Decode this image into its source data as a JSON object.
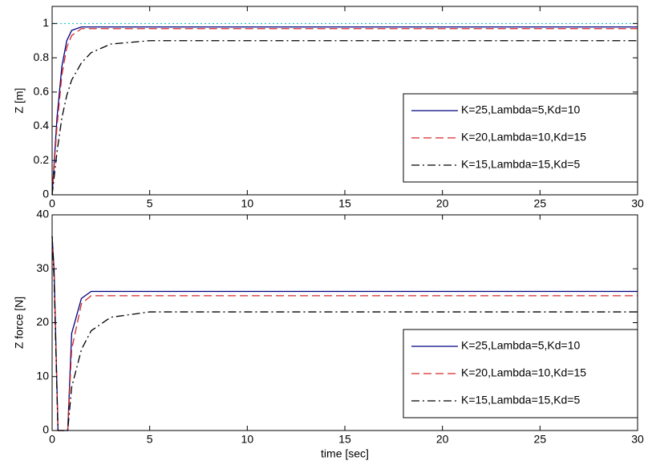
{
  "chart_data": [
    {
      "type": "line",
      "ylabel": "Z [m]",
      "x": [
        0,
        0.25,
        0.5,
        0.75,
        1,
        1.5,
        2,
        3,
        5,
        10,
        20,
        30
      ],
      "series": [
        {
          "name": "K=25,Lambda=5,Kd=10",
          "color": "#000080",
          "linestyle": "solid",
          "values": [
            0,
            0.45,
            0.75,
            0.9,
            0.96,
            0.98,
            0.98,
            0.98,
            0.98,
            0.98,
            0.98,
            0.98
          ]
        },
        {
          "name": "K=20,Lambda=10,Kd=15",
          "color": "#d62728",
          "linestyle": "dashed",
          "values": [
            0,
            0.4,
            0.7,
            0.86,
            0.93,
            0.97,
            0.97,
            0.97,
            0.97,
            0.97,
            0.97,
            0.97
          ]
        },
        {
          "name": "K=15,Lambda=15,Kd=5",
          "color": "#000000",
          "linestyle": "dashdot",
          "values": [
            0,
            0.25,
            0.45,
            0.58,
            0.67,
            0.77,
            0.83,
            0.88,
            0.9,
            0.9,
            0.9,
            0.9
          ]
        }
      ],
      "reference": {
        "value": 1,
        "color": "#00bfbf"
      },
      "xlim": [
        0,
        30
      ],
      "xticks": [
        0,
        5,
        10,
        15,
        20,
        25,
        30
      ],
      "ylim": [
        0,
        1.1
      ],
      "yticks": [
        0,
        0.2,
        0.4,
        0.6,
        0.8,
        1
      ],
      "legend": "lower right"
    },
    {
      "type": "line",
      "ylabel": "Z force [N]",
      "xlabel": "time [sec]",
      "x": [
        0,
        0.1,
        0.3,
        0.5,
        0.8,
        1,
        1.5,
        2,
        3,
        5,
        10,
        30
      ],
      "series": [
        {
          "name": "K=25,Lambda=5,Kd=10",
          "color": "#000080",
          "linestyle": "solid",
          "values": [
            36,
            30,
            0,
            0,
            0,
            18,
            24.5,
            25.8,
            25.8,
            25.8,
            25.8,
            25.8
          ]
        },
        {
          "name": "K=20,Lambda=10,Kd=15",
          "color": "#d62728",
          "linestyle": "dashed",
          "values": [
            36,
            29,
            0,
            0,
            0,
            15,
            23.5,
            25,
            25,
            25,
            25,
            25
          ]
        },
        {
          "name": "K=15,Lambda=15,Kd=5",
          "color": "#000000",
          "linestyle": "dashdot",
          "values": [
            36,
            28,
            0,
            0,
            0,
            8,
            15,
            18.5,
            21,
            22,
            22,
            22
          ]
        }
      ],
      "xlim": [
        0,
        30
      ],
      "xticks": [
        0,
        5,
        10,
        15,
        20,
        25,
        30
      ],
      "ylim": [
        0,
        40
      ],
      "yticks": [
        0,
        10,
        20,
        30,
        40
      ],
      "legend": "lower right"
    }
  ]
}
